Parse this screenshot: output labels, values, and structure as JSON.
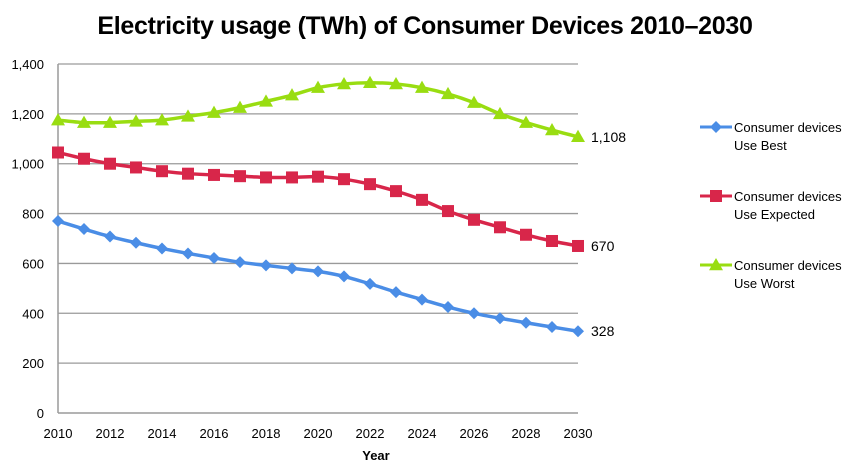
{
  "chart_data": {
    "type": "line",
    "title": "Electricity usage (TWh) of Consumer Devices 2010–2030",
    "xlabel": "Year",
    "ylabel": "",
    "xlim": [
      2010,
      2030
    ],
    "ylim": [
      0,
      1400
    ],
    "x": [
      2010,
      2011,
      2012,
      2013,
      2014,
      2015,
      2016,
      2017,
      2018,
      2019,
      2020,
      2021,
      2022,
      2023,
      2024,
      2025,
      2026,
      2027,
      2028,
      2029,
      2030
    ],
    "x_ticks": [
      "2010",
      "2012",
      "2014",
      "2016",
      "2018",
      "2020",
      "2022",
      "2024",
      "2026",
      "2028",
      "2030"
    ],
    "x_tick_values": [
      2010,
      2012,
      2014,
      2016,
      2018,
      2020,
      2022,
      2024,
      2026,
      2028,
      2030
    ],
    "y_ticks": [
      "0",
      "200",
      "400",
      "600",
      "800",
      "1,000",
      "1,200",
      "1,400"
    ],
    "y_tick_values": [
      0,
      200,
      400,
      600,
      800,
      1000,
      1200,
      1400
    ],
    "grid": "horizontal",
    "legend_position": "right",
    "series": [
      {
        "name": "Consumer devices Use Best",
        "legend_lines": [
          "Consumer devices",
          "Use Best"
        ],
        "color": "#4a8de6",
        "marker": "diamond",
        "end_label": "328",
        "values": [
          770,
          738,
          708,
          683,
          660,
          640,
          622,
          605,
          592,
          580,
          568,
          548,
          518,
          485,
          455,
          425,
          400,
          380,
          362,
          345,
          328
        ]
      },
      {
        "name": "Consumer devices Use Expected",
        "legend_lines": [
          "Consumer devices",
          "Use Expected"
        ],
        "color": "#d8264a",
        "marker": "square",
        "end_label": "670",
        "values": [
          1045,
          1020,
          1000,
          985,
          970,
          960,
          955,
          950,
          945,
          945,
          948,
          938,
          918,
          890,
          855,
          810,
          775,
          745,
          715,
          690,
          670
        ]
      },
      {
        "name": "Consumer devices Use Worst",
        "legend_lines": [
          "Consumer devices",
          "Use Worst"
        ],
        "color": "#99dd11",
        "marker": "triangle",
        "end_label": "1,108",
        "values": [
          1175,
          1165,
          1165,
          1170,
          1175,
          1190,
          1205,
          1225,
          1250,
          1275,
          1305,
          1320,
          1325,
          1320,
          1305,
          1280,
          1245,
          1200,
          1165,
          1135,
          1108
        ]
      }
    ]
  }
}
